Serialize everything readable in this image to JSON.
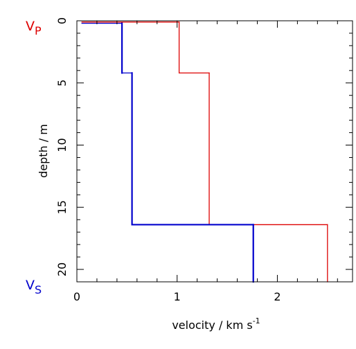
{
  "chart_data": {
    "type": "line",
    "title": "",
    "xlabel": "velocity / km s",
    "xlabel_superscript": "-1",
    "ylabel": "depth / m",
    "xlim": [
      0,
      2.75
    ],
    "ylim": [
      0,
      21
    ],
    "y_inverted": true,
    "grid": false,
    "x_ticks": [
      0,
      1,
      2
    ],
    "x_tick_labels": [
      "0",
      "1",
      "2"
    ],
    "y_ticks": [
      0,
      5,
      10,
      15,
      20
    ],
    "y_tick_labels": [
      "0",
      "5",
      "10",
      "15",
      "20"
    ],
    "series": [
      {
        "name": "V",
        "subscript": "P",
        "label_position": "top-left",
        "color": "#dd0000",
        "points": [
          [
            0.05,
            0.1
          ],
          [
            1.02,
            0.1
          ],
          [
            1.02,
            4.2
          ],
          [
            1.32,
            4.2
          ],
          [
            1.32,
            16.4
          ],
          [
            2.5,
            16.4
          ],
          [
            2.5,
            21
          ]
        ]
      },
      {
        "name": "V",
        "subscript": "S",
        "label_position": "bottom-left",
        "color": "#0000cc",
        "points": [
          [
            0.05,
            0.2
          ],
          [
            0.45,
            0.2
          ],
          [
            0.45,
            4.2
          ],
          [
            0.55,
            4.2
          ],
          [
            0.55,
            16.4
          ],
          [
            1.76,
            16.4
          ],
          [
            1.76,
            21
          ]
        ]
      }
    ]
  }
}
